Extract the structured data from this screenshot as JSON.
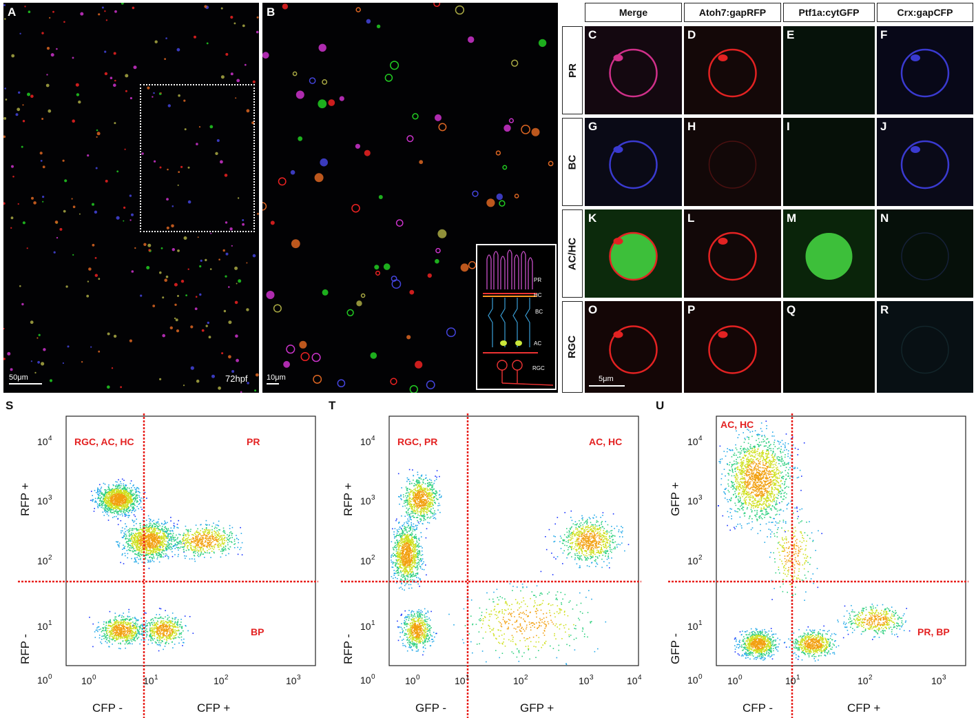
{
  "panels": {
    "A": {
      "label": "A",
      "scale": "50μm",
      "stage": "72hpf"
    },
    "B": {
      "label": "B",
      "scale": "10μm"
    },
    "inset_layers": [
      "PR",
      "HC",
      "BC",
      "AC",
      "RGC"
    ]
  },
  "grid": {
    "columns": [
      "Merge",
      "Atoh7:gapRFP",
      "Ptf1a:cytGFP",
      "Crx:gapCFP"
    ],
    "rows": [
      {
        "name": "PR",
        "letters": [
          "C",
          "D",
          "E",
          "F"
        ]
      },
      {
        "name": "BC",
        "letters": [
          "G",
          "H",
          "I",
          "J"
        ]
      },
      {
        "name": "AC/HC",
        "letters": [
          "K",
          "L",
          "M",
          "N"
        ]
      },
      {
        "name": "RGC",
        "letters": [
          "O",
          "P",
          "Q",
          "R"
        ]
      }
    ],
    "scale": "5μm"
  },
  "flow": [
    {
      "label": "S",
      "ylabel_pos": "RFP +",
      "ylabel_neg": "RFP -",
      "xlabel_neg": "CFP -",
      "xlabel_pos": "CFP +",
      "pop_tl": "RGC, AC, HC",
      "pop_tr": "PR",
      "pop_br": "BP",
      "xticks": [
        {
          "b": "10",
          "e": "0"
        },
        {
          "b": "10",
          "e": "1"
        },
        {
          "b": "10",
          "e": "2"
        },
        {
          "b": "10",
          "e": "3"
        }
      ]
    },
    {
      "label": "T",
      "ylabel_pos": "RFP +",
      "ylabel_neg": "RFP -",
      "xlabel_neg": "GFP -",
      "xlabel_pos": "GFP +",
      "pop_tl": "RGC, PR",
      "pop_tr": "AC, HC",
      "pop_br": "",
      "xticks": [
        {
          "b": "10",
          "e": "0"
        },
        {
          "b": "10",
          "e": "1"
        },
        {
          "b": "10",
          "e": "2"
        },
        {
          "b": "10",
          "e": "3"
        },
        {
          "b": "10",
          "e": "4"
        }
      ]
    },
    {
      "label": "U",
      "ylabel_pos": "GFP +",
      "ylabel_neg": "GFP -",
      "xlabel_neg": "CFP -",
      "xlabel_pos": "CFP +",
      "pop_tl": "AC, HC",
      "pop_tr": "",
      "pop_br": "PR, BP",
      "xticks": [
        {
          "b": "10",
          "e": "0"
        },
        {
          "b": "10",
          "e": "1"
        },
        {
          "b": "10",
          "e": "2"
        },
        {
          "b": "10",
          "e": "3"
        }
      ]
    }
  ],
  "yticks": [
    {
      "b": "10",
      "e": "4"
    },
    {
      "b": "10",
      "e": "3"
    },
    {
      "b": "10",
      "e": "2"
    },
    {
      "b": "10",
      "e": "1"
    },
    {
      "b": "10",
      "e": "0"
    }
  ],
  "colors": {
    "gate": "#e8201c",
    "red": "#e32222",
    "green": "#3dbf3a",
    "blue": "#3a3ad0",
    "magenta": "#d0308a"
  }
}
